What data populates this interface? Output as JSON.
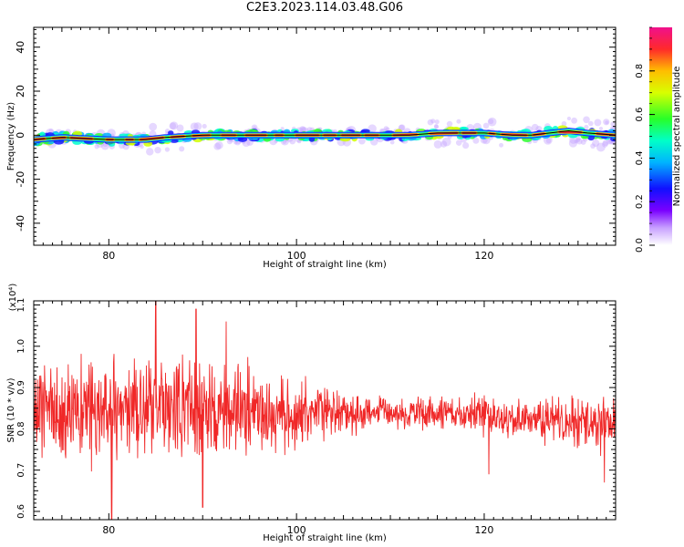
{
  "title": "C2E3.2023.114.03.48.G06",
  "chart_data": [
    {
      "type": "heatmap",
      "xlabel": "Height of straight line (km)",
      "ylabel": "Frequency (Hz)",
      "xlim": [
        72,
        134
      ],
      "ylim": [
        -50,
        49
      ],
      "xticks": [
        80,
        100,
        120
      ],
      "yticks": [
        -40,
        -20,
        0,
        20,
        40
      ],
      "colorbar": {
        "label": "Normalized spectral amplitude",
        "range": [
          0,
          1
        ],
        "ticks": [
          0.0,
          0.2,
          0.4,
          0.6,
          0.8
        ]
      },
      "ridge": {
        "x": [
          72,
          75,
          80,
          84,
          86,
          90,
          92,
          96,
          100,
          104,
          108,
          112,
          115,
          117,
          120,
          123,
          125,
          127,
          129,
          131,
          134
        ],
        "y": [
          -2,
          -1,
          -2,
          -2,
          -1,
          0,
          0,
          0,
          0,
          0,
          0,
          0,
          1,
          1,
          1,
          0,
          0,
          1,
          2,
          1,
          0
        ]
      }
    },
    {
      "type": "line",
      "xlabel": "Height of straight line (km)",
      "ylabel": "SNR (10 * v/v)",
      "y_multiplier": "(x10⁴)",
      "xlim": [
        72,
        134
      ],
      "ylim": [
        0.58,
        1.11
      ],
      "xticks": [
        80,
        100,
        120
      ],
      "yticks": [
        0.6,
        0.7,
        0.8,
        0.9,
        1.0,
        1.1
      ],
      "series": [
        {
          "color": "#f02828",
          "envelope": {
            "x": [
              72,
              76,
              80,
              84,
              88,
              92,
              96,
              100,
              104,
              108,
              112,
              116,
              120,
              124,
              128,
              132,
              134
            ],
            "center": [
              0.85,
              0.85,
              0.85,
              0.85,
              0.85,
              0.845,
              0.84,
              0.84,
              0.84,
              0.84,
              0.84,
              0.835,
              0.83,
              0.825,
              0.82,
              0.82,
              0.82
            ],
            "amplitude": [
              0.1,
              0.11,
              0.12,
              0.12,
              0.12,
              0.1,
              0.09,
              0.07,
              0.05,
              0.035,
              0.035,
              0.035,
              0.045,
              0.04,
              0.05,
              0.06,
              0.06
            ]
          },
          "peaks": [
            {
              "x": 80.3,
              "y": 0.58
            },
            {
              "x": 85.0,
              "y": 1.11
            },
            {
              "x": 89.3,
              "y": 1.09
            },
            {
              "x": 90.0,
              "y": 0.61
            },
            {
              "x": 92.5,
              "y": 1.06
            },
            {
              "x": 120.5,
              "y": 0.69
            },
            {
              "x": 132.8,
              "y": 0.67
            }
          ]
        }
      ]
    }
  ]
}
